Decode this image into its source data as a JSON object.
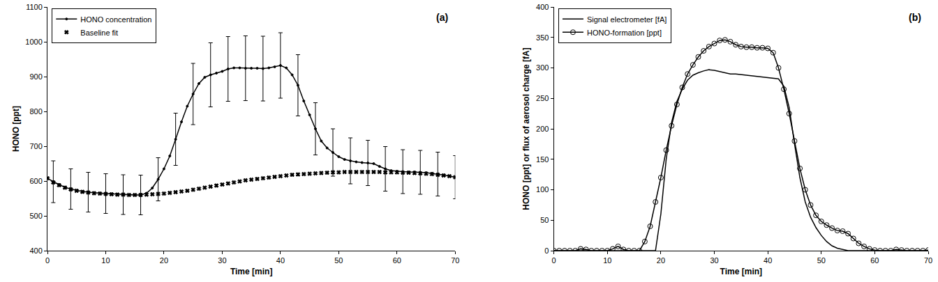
{
  "chart_data": [
    {
      "type": "line",
      "annotation": "(a)",
      "x_label": "Time [min]",
      "y_label": "HONO [ppt]",
      "xlim": [
        0,
        70
      ],
      "xticks": [
        0,
        10,
        20,
        30,
        40,
        50,
        60,
        70
      ],
      "ylim": [
        400,
        1100
      ],
      "yticks": [
        400,
        500,
        600,
        700,
        800,
        900,
        1000,
        1100
      ],
      "grid": false,
      "legend": "upper left",
      "x": [
        0,
        1,
        2,
        3,
        4,
        5,
        6,
        7,
        8,
        9,
        10,
        11,
        12,
        13,
        14,
        15,
        16,
        17,
        18,
        19,
        20,
        21,
        22,
        23,
        24,
        25,
        26,
        27,
        28,
        29,
        30,
        31,
        32,
        33,
        34,
        35,
        36,
        37,
        38,
        39,
        40,
        41,
        42,
        43,
        44,
        45,
        46,
        47,
        48,
        49,
        50,
        51,
        52,
        53,
        54,
        55,
        56,
        57,
        58,
        59,
        60,
        61,
        62,
        63,
        64,
        65,
        66,
        67,
        68,
        69,
        70
      ],
      "series": [
        {
          "name": "HONO concentration",
          "color": "#000000",
          "marker": "circle",
          "line_style": "solid",
          "values": [
            608,
            598,
            590,
            582,
            577,
            573,
            570,
            568,
            566,
            565,
            564,
            563,
            562,
            561,
            560,
            560,
            560,
            565,
            580,
            605,
            635,
            672,
            720,
            770,
            815,
            850,
            880,
            898,
            905,
            910,
            915,
            922,
            925,
            925,
            924,
            924,
            924,
            923,
            925,
            928,
            932,
            925,
            905,
            875,
            830,
            790,
            750,
            715,
            695,
            682,
            670,
            662,
            658,
            655,
            653,
            652,
            650,
            642,
            635,
            630,
            628,
            627,
            626,
            626,
            625,
            624,
            622,
            620,
            617,
            614,
            611
          ],
          "errors": [
            null,
            60,
            null,
            null,
            58,
            null,
            null,
            57,
            null,
            null,
            57,
            null,
            null,
            57,
            null,
            null,
            57,
            null,
            null,
            62,
            null,
            null,
            75,
            null,
            null,
            88,
            null,
            null,
            92,
            null,
            null,
            93,
            null,
            null,
            93,
            null,
            null,
            93,
            null,
            null,
            94,
            null,
            null,
            88,
            null,
            null,
            75,
            null,
            null,
            68,
            null,
            null,
            66,
            null,
            null,
            65,
            null,
            null,
            64,
            null,
            null,
            63,
            null,
            null,
            63,
            null,
            null,
            63,
            null,
            null,
            62
          ]
        },
        {
          "name": "Baseline fit",
          "color": "#000000",
          "marker": "x",
          "line_style": "none",
          "values": [
            608,
            596,
            588,
            581,
            576,
            572,
            569,
            567,
            565,
            564,
            563,
            562,
            561,
            561,
            560,
            560,
            560,
            561,
            562,
            563,
            564,
            566,
            568,
            570,
            572,
            575,
            578,
            581,
            584,
            587,
            590,
            593,
            596,
            599,
            602,
            604,
            606,
            608,
            610,
            612,
            614,
            616,
            618,
            619,
            620,
            621,
            622,
            623,
            624,
            625,
            625,
            626,
            626,
            626,
            626,
            626,
            626,
            626,
            625,
            625,
            625,
            624,
            624,
            623,
            622,
            621,
            620,
            618,
            616,
            614,
            611
          ]
        }
      ]
    },
    {
      "type": "line",
      "annotation": "(b)",
      "x_label": "Time [min]",
      "y_label": "HONO [ppt] or flux of aerosol charge [fA]",
      "xlim": [
        0,
        70
      ],
      "xticks": [
        0,
        10,
        20,
        30,
        40,
        50,
        60,
        70
      ],
      "ylim": [
        0,
        400
      ],
      "yticks": [
        0,
        50,
        100,
        150,
        200,
        250,
        300,
        350,
        400
      ],
      "grid": false,
      "legend": "upper left",
      "x": [
        0,
        1,
        2,
        3,
        4,
        5,
        6,
        7,
        8,
        9,
        10,
        11,
        12,
        13,
        14,
        15,
        16,
        17,
        18,
        19,
        20,
        21,
        22,
        23,
        24,
        25,
        26,
        27,
        28,
        29,
        30,
        31,
        32,
        33,
        34,
        35,
        36,
        37,
        38,
        39,
        40,
        41,
        42,
        43,
        44,
        45,
        46,
        47,
        48,
        49,
        50,
        51,
        52,
        53,
        54,
        55,
        56,
        57,
        58,
        59,
        60,
        61,
        62,
        63,
        64,
        65,
        66,
        67,
        68,
        69,
        70
      ],
      "series": [
        {
          "name": "Signal electrometer [fA]",
          "color": "#000000",
          "marker": "none",
          "line_style": "solid",
          "values": [
            0,
            0,
            0,
            0,
            0,
            0,
            0,
            0,
            0,
            0,
            0,
            0,
            0,
            0,
            0,
            0,
            0,
            0,
            0,
            0,
            60,
            150,
            210,
            245,
            265,
            280,
            288,
            292,
            295,
            297,
            296,
            294,
            292,
            290,
            290,
            289,
            288,
            287,
            286,
            285,
            284,
            283,
            282,
            270,
            235,
            175,
            120,
            80,
            55,
            38,
            25,
            15,
            8,
            4,
            2,
            0,
            0,
            0,
            0,
            0,
            0,
            0,
            0,
            0,
            0,
            0,
            0,
            0,
            0,
            0,
            0
          ]
        },
        {
          "name": "HONO-formation [ppt]",
          "color": "#000000",
          "marker": "circle-open",
          "line_style": "solid",
          "values": [
            0,
            0,
            0,
            0,
            0,
            3,
            2,
            0,
            0,
            0,
            0,
            3,
            7,
            2,
            0,
            0,
            0,
            15,
            40,
            80,
            120,
            165,
            205,
            240,
            268,
            290,
            305,
            318,
            328,
            335,
            340,
            345,
            346,
            343,
            338,
            335,
            334,
            334,
            333,
            333,
            332,
            325,
            300,
            265,
            225,
            180,
            135,
            100,
            75,
            58,
            48,
            42,
            37,
            33,
            32,
            28,
            20,
            12,
            7,
            3,
            1,
            0,
            0,
            0,
            2,
            1,
            0,
            0,
            0,
            0,
            1
          ]
        }
      ]
    }
  ]
}
